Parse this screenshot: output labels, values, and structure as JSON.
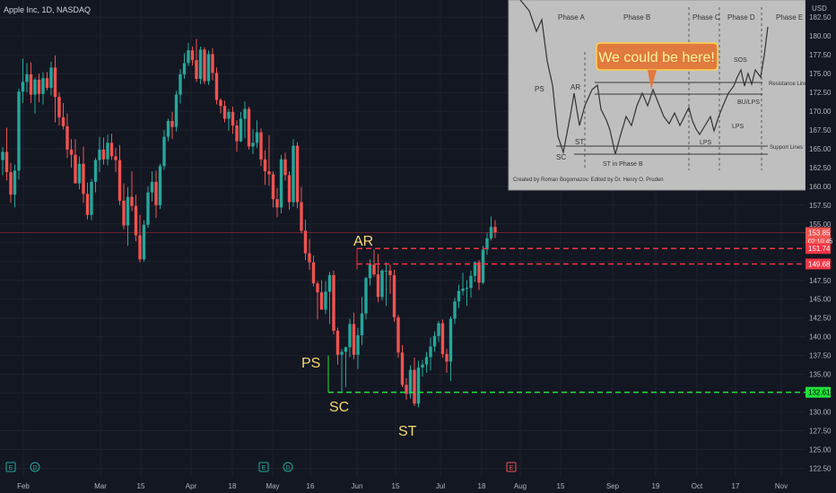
{
  "header": {
    "ticker_line": "Apple Inc, 1D, NASDAQ",
    "currency": "USD"
  },
  "colors": {
    "background": "#131722",
    "grid": "#1e222d",
    "up": "#26a69a",
    "down": "#ef5350",
    "annotation": "#f5d76e",
    "resistance_line": "#f23645",
    "support_line": "#22e03a",
    "price_line": "#f23645"
  },
  "chart_data": {
    "type": "candlestick",
    "title": "Apple Inc, 1D, NASDAQ",
    "y_axis": {
      "ticks": [
        182.5,
        180.0,
        177.5,
        175.0,
        172.5,
        170.0,
        167.5,
        165.0,
        162.5,
        160.0,
        157.5,
        155.0,
        152.5,
        150.0,
        147.5,
        145.0,
        142.5,
        140.0,
        137.5,
        135.0,
        132.5,
        130.0,
        127.5,
        125.0,
        122.5
      ],
      "ylim": [
        121.6,
        183.6
      ]
    },
    "x_axis": {
      "labels": [
        "Feb",
        "Mar",
        "15",
        "Apr",
        "18",
        "May",
        "16",
        "Jun",
        "15",
        "Jul",
        "18",
        "Aug",
        "15",
        "Sep",
        "19",
        "Oct",
        "17",
        "Nov"
      ]
    },
    "candles": [
      {
        "o": 163.5,
        "h": 165.2,
        "l": 161.5,
        "c": 164.6
      },
      {
        "o": 164.6,
        "h": 167.8,
        "l": 160.8,
        "c": 161.9
      },
      {
        "o": 161.9,
        "h": 163.1,
        "l": 157.8,
        "c": 158.9
      },
      {
        "o": 158.9,
        "h": 162.9,
        "l": 157.2,
        "c": 162.1
      },
      {
        "o": 162.1,
        "h": 173.0,
        "l": 160.9,
        "c": 172.6
      },
      {
        "o": 172.6,
        "h": 177.0,
        "l": 171.1,
        "c": 173.9
      },
      {
        "o": 173.9,
        "h": 176.4,
        "l": 172.5,
        "c": 174.9
      },
      {
        "o": 174.9,
        "h": 176.5,
        "l": 171.1,
        "c": 172.2
      },
      {
        "o": 172.2,
        "h": 174.5,
        "l": 169.7,
        "c": 174.2
      },
      {
        "o": 174.2,
        "h": 175.0,
        "l": 171.2,
        "c": 172.3
      },
      {
        "o": 172.3,
        "h": 175.2,
        "l": 170.9,
        "c": 174.4
      },
      {
        "o": 174.4,
        "h": 175.2,
        "l": 172.8,
        "c": 173.1
      },
      {
        "o": 173.1,
        "h": 176.6,
        "l": 172.1,
        "c": 175.8
      },
      {
        "o": 175.8,
        "h": 177.4,
        "l": 168.5,
        "c": 171.9
      },
      {
        "o": 171.9,
        "h": 172.5,
        "l": 168.1,
        "c": 169.2
      },
      {
        "o": 169.2,
        "h": 171.1,
        "l": 167.6,
        "c": 168.0
      },
      {
        "o": 168.0,
        "h": 169.7,
        "l": 163.8,
        "c": 164.9
      },
      {
        "o": 164.9,
        "h": 166.3,
        "l": 162.5,
        "c": 164.2
      },
      {
        "o": 164.2,
        "h": 166.3,
        "l": 160.4,
        "c": 160.4
      },
      {
        "o": 160.4,
        "h": 164.0,
        "l": 159.6,
        "c": 163.0
      },
      {
        "o": 163.0,
        "h": 165.3,
        "l": 157.8,
        "c": 159.0
      },
      {
        "o": 159.0,
        "h": 160.5,
        "l": 155.6,
        "c": 156.2
      },
      {
        "o": 156.2,
        "h": 161.0,
        "l": 155.5,
        "c": 160.6
      },
      {
        "o": 160.6,
        "h": 163.8,
        "l": 159.2,
        "c": 163.5
      },
      {
        "o": 163.5,
        "h": 166.6,
        "l": 161.9,
        "c": 164.9
      },
      {
        "o": 164.9,
        "h": 166.5,
        "l": 162.9,
        "c": 163.6
      },
      {
        "o": 163.6,
        "h": 166.9,
        "l": 162.8,
        "c": 165.8
      },
      {
        "o": 165.8,
        "h": 167.0,
        "l": 163.5,
        "c": 164.0
      },
      {
        "o": 164.0,
        "h": 165.1,
        "l": 161.9,
        "c": 163.5
      },
      {
        "o": 163.5,
        "h": 165.5,
        "l": 157.5,
        "c": 158.1
      },
      {
        "o": 158.1,
        "h": 160.4,
        "l": 154.3,
        "c": 154.8
      },
      {
        "o": 154.8,
        "h": 159.9,
        "l": 152.1,
        "c": 158.6
      },
      {
        "o": 158.6,
        "h": 162.0,
        "l": 156.7,
        "c": 157.4
      },
      {
        "o": 157.4,
        "h": 158.9,
        "l": 152.7,
        "c": 153.5
      },
      {
        "o": 153.5,
        "h": 156.2,
        "l": 149.9,
        "c": 150.3
      },
      {
        "o": 150.3,
        "h": 155.5,
        "l": 150.0,
        "c": 154.9
      },
      {
        "o": 154.9,
        "h": 160.0,
        "l": 154.5,
        "c": 159.2
      },
      {
        "o": 159.2,
        "h": 162.0,
        "l": 158.0,
        "c": 160.6
      },
      {
        "o": 160.6,
        "h": 162.1,
        "l": 155.8,
        "c": 157.5
      },
      {
        "o": 157.5,
        "h": 163.0,
        "l": 157.0,
        "c": 162.7
      },
      {
        "o": 162.7,
        "h": 167.5,
        "l": 162.2,
        "c": 166.6
      },
      {
        "o": 166.6,
        "h": 169.0,
        "l": 166.0,
        "c": 168.7
      },
      {
        "o": 168.7,
        "h": 169.9,
        "l": 166.3,
        "c": 167.9
      },
      {
        "o": 167.9,
        "h": 172.7,
        "l": 167.3,
        "c": 172.2
      },
      {
        "o": 172.2,
        "h": 175.6,
        "l": 171.0,
        "c": 174.9
      },
      {
        "o": 174.9,
        "h": 177.7,
        "l": 174.3,
        "c": 176.4
      },
      {
        "o": 176.4,
        "h": 179.1,
        "l": 176.0,
        "c": 178.1
      },
      {
        "o": 178.1,
        "h": 178.6,
        "l": 176.1,
        "c": 176.8
      },
      {
        "o": 176.8,
        "h": 179.6,
        "l": 173.9,
        "c": 174.3
      },
      {
        "o": 174.3,
        "h": 178.6,
        "l": 173.6,
        "c": 178.2
      },
      {
        "o": 178.2,
        "h": 178.5,
        "l": 173.6,
        "c": 174.0
      },
      {
        "o": 174.0,
        "h": 178.1,
        "l": 173.5,
        "c": 177.6
      },
      {
        "o": 177.6,
        "h": 178.4,
        "l": 174.1,
        "c": 175.1
      },
      {
        "o": 175.1,
        "h": 175.8,
        "l": 170.9,
        "c": 171.5
      },
      {
        "o": 171.5,
        "h": 171.7,
        "l": 169.7,
        "c": 170.7
      },
      {
        "o": 170.7,
        "h": 171.4,
        "l": 168.5,
        "c": 169.0
      },
      {
        "o": 169.0,
        "h": 170.3,
        "l": 167.4,
        "c": 169.9
      },
      {
        "o": 169.9,
        "h": 170.6,
        "l": 167.0,
        "c": 168.1
      },
      {
        "o": 168.1,
        "h": 168.8,
        "l": 164.6,
        "c": 166.0
      },
      {
        "o": 166.0,
        "h": 169.9,
        "l": 165.9,
        "c": 169.0
      },
      {
        "o": 169.0,
        "h": 171.3,
        "l": 166.4,
        "c": 170.3
      },
      {
        "o": 170.3,
        "h": 170.6,
        "l": 164.9,
        "c": 165.3
      },
      {
        "o": 165.3,
        "h": 167.6,
        "l": 164.3,
        "c": 165.8
      },
      {
        "o": 165.8,
        "h": 168.8,
        "l": 165.1,
        "c": 167.2
      },
      {
        "o": 167.2,
        "h": 167.7,
        "l": 162.7,
        "c": 163.6
      },
      {
        "o": 163.6,
        "h": 164.8,
        "l": 160.2,
        "c": 162.0
      },
      {
        "o": 162.0,
        "h": 166.8,
        "l": 160.1,
        "c": 161.6
      },
      {
        "o": 161.6,
        "h": 162.0,
        "l": 157.2,
        "c": 158.3
      },
      {
        "o": 158.3,
        "h": 159.8,
        "l": 155.9,
        "c": 157.2
      },
      {
        "o": 157.2,
        "h": 164.2,
        "l": 156.4,
        "c": 163.6
      },
      {
        "o": 163.6,
        "h": 164.5,
        "l": 160.8,
        "c": 161.5
      },
      {
        "o": 161.5,
        "h": 162.0,
        "l": 156.9,
        "c": 157.9
      },
      {
        "o": 157.9,
        "h": 166.3,
        "l": 157.3,
        "c": 165.4
      },
      {
        "o": 165.4,
        "h": 165.9,
        "l": 157.1,
        "c": 157.9
      },
      {
        "o": 157.9,
        "h": 159.9,
        "l": 153.7,
        "c": 154.1
      },
      {
        "o": 154.1,
        "h": 155.6,
        "l": 150.2,
        "c": 151.1
      },
      {
        "o": 151.1,
        "h": 153.0,
        "l": 148.9,
        "c": 149.9
      },
      {
        "o": 149.9,
        "h": 150.8,
        "l": 146.7,
        "c": 147.1
      },
      {
        "o": 147.1,
        "h": 147.4,
        "l": 142.3,
        "c": 145.9
      },
      {
        "o": 145.9,
        "h": 147.5,
        "l": 143.8,
        "c": 143.6
      },
      {
        "o": 143.6,
        "h": 147.4,
        "l": 143.0,
        "c": 146.0
      },
      {
        "o": 146.0,
        "h": 148.6,
        "l": 141.7,
        "c": 148.2
      },
      {
        "o": 148.2,
        "h": 148.8,
        "l": 140.3,
        "c": 140.8
      },
      {
        "o": 140.8,
        "h": 141.2,
        "l": 136.3,
        "c": 137.6
      },
      {
        "o": 137.6,
        "h": 138.4,
        "l": 132.7,
        "c": 138.0
      },
      {
        "o": 138.0,
        "h": 138.7,
        "l": 133.3,
        "c": 138.6
      },
      {
        "o": 138.6,
        "h": 142.4,
        "l": 137.3,
        "c": 141.7
      },
      {
        "o": 141.7,
        "h": 143.2,
        "l": 137.0,
        "c": 137.6
      },
      {
        "o": 137.6,
        "h": 141.2,
        "l": 135.7,
        "c": 140.2
      },
      {
        "o": 140.2,
        "h": 145.3,
        "l": 138.9,
        "c": 143.1
      },
      {
        "o": 143.1,
        "h": 148.0,
        "l": 142.3,
        "c": 147.8
      },
      {
        "o": 147.8,
        "h": 150.3,
        "l": 146.8,
        "c": 149.6
      },
      {
        "o": 149.6,
        "h": 151.6,
        "l": 148.0,
        "c": 148.3
      },
      {
        "o": 148.3,
        "h": 151.0,
        "l": 144.6,
        "c": 145.3
      },
      {
        "o": 145.3,
        "h": 149.0,
        "l": 144.8,
        "c": 148.8
      },
      {
        "o": 148.8,
        "h": 149.9,
        "l": 144.1,
        "c": 148.8
      },
      {
        "o": 148.8,
        "h": 149.6,
        "l": 145.7,
        "c": 148.2
      },
      {
        "o": 148.2,
        "h": 148.9,
        "l": 142.0,
        "c": 142.6
      },
      {
        "o": 142.6,
        "h": 142.9,
        "l": 137.2,
        "c": 137.9
      },
      {
        "o": 137.9,
        "h": 138.9,
        "l": 133.3,
        "c": 133.6
      },
      {
        "o": 133.6,
        "h": 134.5,
        "l": 131.6,
        "c": 132.4
      },
      {
        "o": 132.4,
        "h": 136.2,
        "l": 131.8,
        "c": 135.6
      },
      {
        "o": 135.6,
        "h": 137.2,
        "l": 130.8,
        "c": 131.1
      },
      {
        "o": 131.1,
        "h": 136.8,
        "l": 130.6,
        "c": 135.9
      },
      {
        "o": 135.9,
        "h": 136.9,
        "l": 134.7,
        "c": 136.3
      },
      {
        "o": 136.3,
        "h": 138.0,
        "l": 135.2,
        "c": 137.3
      },
      {
        "o": 137.3,
        "h": 139.9,
        "l": 135.5,
        "c": 138.7
      },
      {
        "o": 138.7,
        "h": 140.7,
        "l": 138.0,
        "c": 140.1
      },
      {
        "o": 140.1,
        "h": 142.1,
        "l": 139.3,
        "c": 141.8
      },
      {
        "o": 141.8,
        "h": 142.3,
        "l": 137.2,
        "c": 137.7
      },
      {
        "o": 137.7,
        "h": 138.4,
        "l": 135.2,
        "c": 136.7
      },
      {
        "o": 136.7,
        "h": 142.7,
        "l": 134.1,
        "c": 142.4
      },
      {
        "o": 142.4,
        "h": 145.2,
        "l": 141.7,
        "c": 144.7
      },
      {
        "o": 144.7,
        "h": 146.9,
        "l": 143.8,
        "c": 146.1
      },
      {
        "o": 146.1,
        "h": 148.5,
        "l": 145.5,
        "c": 146.4
      },
      {
        "o": 146.4,
        "h": 147.5,
        "l": 144.1,
        "c": 146.5
      },
      {
        "o": 146.5,
        "h": 148.8,
        "l": 145.2,
        "c": 148.1
      },
      {
        "o": 148.1,
        "h": 150.0,
        "l": 147.3,
        "c": 149.9
      },
      {
        "o": 149.9,
        "h": 150.2,
        "l": 146.2,
        "c": 147.2
      },
      {
        "o": 147.2,
        "h": 152.1,
        "l": 147.0,
        "c": 151.6
      },
      {
        "o": 151.6,
        "h": 153.8,
        "l": 150.9,
        "c": 153.1
      },
      {
        "o": 153.1,
        "h": 156.0,
        "l": 152.8,
        "c": 154.6
      },
      {
        "o": 154.6,
        "h": 155.5,
        "l": 153.1,
        "c": 153.9
      }
    ],
    "levels": [
      {
        "name": "resistance-high",
        "value": 151.74,
        "label": "151.74"
      },
      {
        "name": "resistance-low",
        "value": 149.68,
        "label": "149.68"
      },
      {
        "name": "support",
        "value": 132.61,
        "label": "132.61"
      }
    ],
    "last_price": {
      "value": 153.85,
      "label": "153.85",
      "countdown": "02:10:45"
    },
    "wyckoff_labels": [
      "PS",
      "SC",
      "AR",
      "ST"
    ],
    "event_markers": [
      "E",
      "D",
      "E",
      "D",
      "E"
    ]
  },
  "inset": {
    "phases": [
      "Phase A",
      "Phase B",
      "Phase C",
      "Phase D",
      "Phase E"
    ],
    "callout": "We could be here!",
    "labels": [
      "PS",
      "SC",
      "AR",
      "ST",
      "ST in Phase B",
      "LPS",
      "LPS",
      "BU/LPS",
      "SOS"
    ],
    "resistance_label": "Resistance Lines",
    "support_label": "Support Lines",
    "credit": "Created by Roman Bogomazov. Edited by Dr. Henry O. Pruden"
  }
}
